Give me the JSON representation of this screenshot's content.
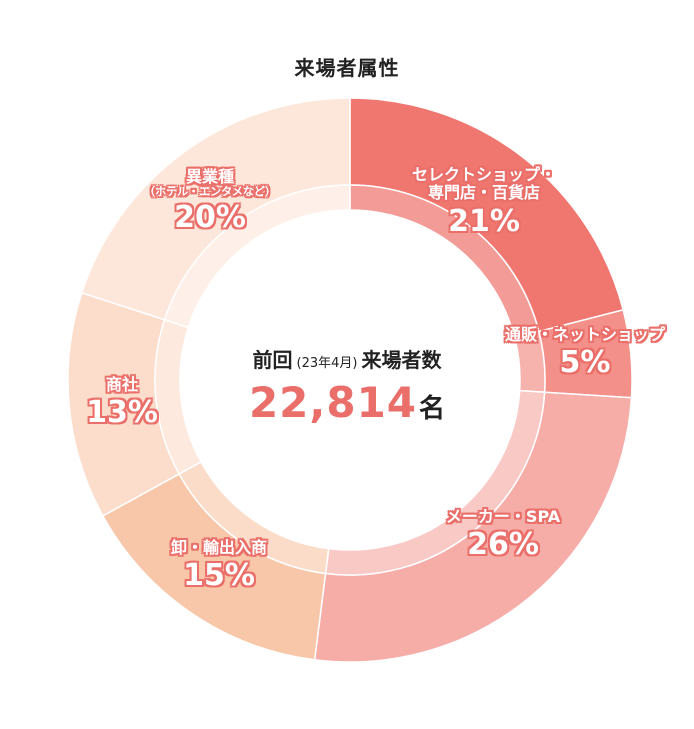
{
  "chart_data": {
    "type": "pie",
    "title": "来場者属性",
    "categories": [
      "セレクトショップ・専門店・百貨店",
      "通販・ネットショップ",
      "メーカー・SPA",
      "卸・輸出入商",
      "商社",
      "異業種（ホテル・エンタメなど）"
    ],
    "values": [
      21,
      5,
      26,
      15,
      13,
      20
    ],
    "unit": "%",
    "colors": [
      "#f07670",
      "#f39089",
      "#f6aca7",
      "#f8c7aa",
      "#fcdcca",
      "#fde7da"
    ],
    "inner_colors": [
      "#f39c97",
      "#f6b3ae",
      "#f9c9c6",
      "#fbdcc9",
      "#fde9de",
      "#fef0e8"
    ]
  },
  "center": {
    "prefix": "前回",
    "period": "(23年4月)",
    "suffix": "来場者数",
    "count": "22,814",
    "count_unit": "名"
  },
  "labels": [
    {
      "name": "セレクトショップ・",
      "name2": "専門店・百貨店",
      "sub": "",
      "pct": "21%"
    },
    {
      "name": "通販・ネットショップ",
      "name2": "",
      "sub": "",
      "pct": "5%"
    },
    {
      "name": "メーカー・SPA",
      "name2": "",
      "sub": "",
      "pct": "26%"
    },
    {
      "name": "卸・輸出入商",
      "name2": "",
      "sub": "",
      "pct": "15%"
    },
    {
      "name": "商社",
      "name2": "",
      "sub": "",
      "pct": "13%"
    },
    {
      "name": "異業種",
      "name2": "",
      "sub": "（ホテル・エンタメなど）",
      "pct": "20%"
    }
  ]
}
